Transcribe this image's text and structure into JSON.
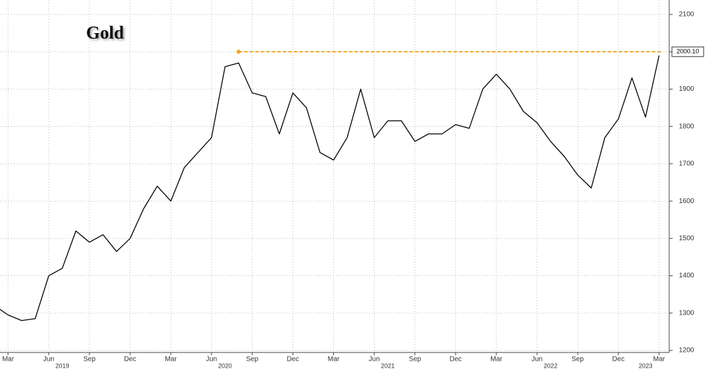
{
  "chart_data": {
    "type": "line",
    "title": "Gold",
    "x": [
      "2019-02",
      "2019-03",
      "2019-04",
      "2019-05",
      "2019-06",
      "2019-07",
      "2019-08",
      "2019-09",
      "2019-10",
      "2019-11",
      "2019-12",
      "2020-01",
      "2020-02",
      "2020-03",
      "2020-04",
      "2020-05",
      "2020-06",
      "2020-07",
      "2020-08",
      "2020-09",
      "2020-10",
      "2020-11",
      "2020-12",
      "2021-01",
      "2021-02",
      "2021-03",
      "2021-04",
      "2021-05",
      "2021-06",
      "2021-07",
      "2021-08",
      "2021-09",
      "2021-10",
      "2021-11",
      "2021-12",
      "2022-01",
      "2022-02",
      "2022-03",
      "2022-04",
      "2022-05",
      "2022-06",
      "2022-07",
      "2022-08",
      "2022-09",
      "2022-10",
      "2022-11",
      "2022-12",
      "2023-01",
      "2023-02",
      "2023-03"
    ],
    "values": [
      1320,
      1295,
      1280,
      1285,
      1400,
      1420,
      1520,
      1490,
      1510,
      1465,
      1500,
      1580,
      1640,
      1600,
      1690,
      1730,
      1770,
      1960,
      1970,
      1890,
      1880,
      1780,
      1890,
      1850,
      1730,
      1710,
      1770,
      1900,
      1770,
      1815,
      1815,
      1760,
      1780,
      1780,
      1805,
      1795,
      1900,
      1940,
      1900,
      1840,
      1810,
      1760,
      1720,
      1670,
      1635,
      1770,
      1820,
      1930,
      1825,
      1990
    ],
    "color": "#000000",
    "xlim": [
      "2019-02",
      "2023-04"
    ],
    "xticks": [
      {
        "value": "2019-03",
        "label": "Mar"
      },
      {
        "value": "2019-06",
        "label": "Jun"
      },
      {
        "value": "2019-09",
        "label": "Sep"
      },
      {
        "value": "2019-12",
        "label": "Dec"
      },
      {
        "value": "2020-03",
        "label": "Mar"
      },
      {
        "value": "2020-06",
        "label": "Jun"
      },
      {
        "value": "2020-09",
        "label": "Sep"
      },
      {
        "value": "2020-12",
        "label": "Dec"
      },
      {
        "value": "2021-03",
        "label": "Mar"
      },
      {
        "value": "2021-06",
        "label": "Jun"
      },
      {
        "value": "2021-09",
        "label": "Sep"
      },
      {
        "value": "2021-12",
        "label": "Dec"
      },
      {
        "value": "2022-03",
        "label": "Mar"
      },
      {
        "value": "2022-06",
        "label": "Jun"
      },
      {
        "value": "2022-09",
        "label": "Sep"
      },
      {
        "value": "2022-12",
        "label": "Dec"
      },
      {
        "value": "2023-03",
        "label": "Mar"
      }
    ],
    "year_labels": [
      2019,
      2020,
      2021,
      2022,
      2023
    ],
    "ylim": [
      1200,
      2100
    ],
    "yticks": [
      1200,
      1300,
      1400,
      1500,
      1600,
      1700,
      1800,
      1900,
      2000,
      2100
    ],
    "grid": true,
    "reference_line": {
      "value": 2000.1,
      "label": "2000.10",
      "start": "2020-08",
      "color": "#f5a623"
    }
  }
}
